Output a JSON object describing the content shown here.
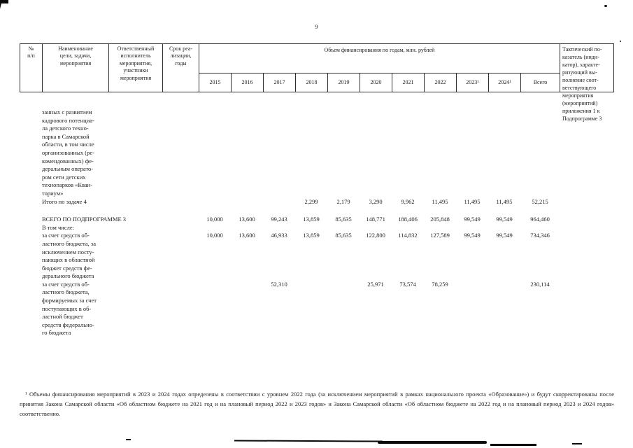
{
  "page": {
    "number": "9"
  },
  "header": {
    "col_num": "№\nп/п",
    "col_name": "Наименование\nцели, задачи,\nмероприятия",
    "col_resp": "Ответственный\nисполнитель\nмероприятия,\nучастники\nмероприятия",
    "col_term": "Срок реа-\nлизации,\nгоды",
    "col_fin": "Объем финансирования по годам, млн. рублей",
    "years": [
      "2015",
      "2016",
      "2017",
      "2018",
      "2019",
      "2020",
      "2021",
      "2022",
      "2023¹",
      "2024¹",
      "Всего"
    ],
    "col_indicator": "Тактический по-\nказатель (инди-\nкатор), характе-\nризующий вы-\nполнение соот-\nветствующего\nмероприятия\n(мероприятий)\nприложения 1 к\nПодпрограмме 3"
  },
  "rows": [
    {
      "name": "занных с развитием\nкадрового потенциа-\nла детского техно-\nпарка в Самарской\nобласти, в том числе\nорганизованных (ре-\nкомендованных) фе-\nдеральным операто-\nром сети детских\nтехнопарков «Кван-\nториум»",
      "values": []
    },
    {
      "name": "Итого по задаче 4",
      "values": [
        "",
        "",
        "",
        "2,299",
        "2,179",
        "3,290",
        "9,962",
        "11,495",
        "11,495",
        "11,495",
        "52,215"
      ]
    },
    {
      "name": "ВСЕГО ПО ПОДПРОГРАММЕ 3",
      "values": [
        "10,000",
        "13,600",
        "99,243",
        "13,859",
        "85,635",
        "148,771",
        "188,406",
        "205,848",
        "99,549",
        "99,549",
        "964,460"
      ]
    },
    {
      "name": "В том числе:",
      "values": []
    },
    {
      "name": "за счет средств об-\nластного бюджета, за\nисключением посту-\nпающих в областной\nбюджет средств фе-\nдерального бюджета",
      "values": [
        "10,000",
        "13,600",
        "46,933",
        "13,859",
        "85,635",
        "122,800",
        "114,832",
        "127,589",
        "99,549",
        "99,549",
        "734,346"
      ]
    },
    {
      "name": "за счет средств об-\nластного бюджета,\nформируемых за счет\nпоступающих в об-\nластной бюджет\nсредств федерально-\nго бюджета",
      "values": [
        "",
        "",
        "52,310",
        "",
        "",
        "25,971",
        "73,574",
        "78,259",
        "",
        "",
        "230,114"
      ]
    }
  ],
  "footnote": "¹ Объемы финансирования мероприятий в 2023 и 2024 годах определены в соответствии с уровнем 2022 года (за исключением мероприятий в рамках национального проекта «Образование») и будут скорректированы после принятия Закона Самарской области «Об областном бюджете на 2021 год и на плановый период 2022 и 2023 годов» и Закона Самарской области «Об областном бюджете на 2022 год и на плановый период 2023 и 2024 годов» соответственно."
}
